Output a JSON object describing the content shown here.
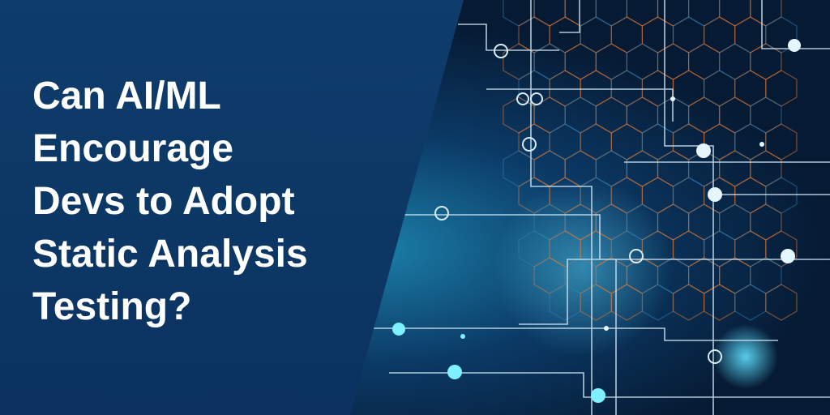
{
  "title_lines": [
    "Can AI/ML",
    "Encourage",
    "Devs to Adopt",
    "Static Analysis",
    "Testing?"
  ]
}
